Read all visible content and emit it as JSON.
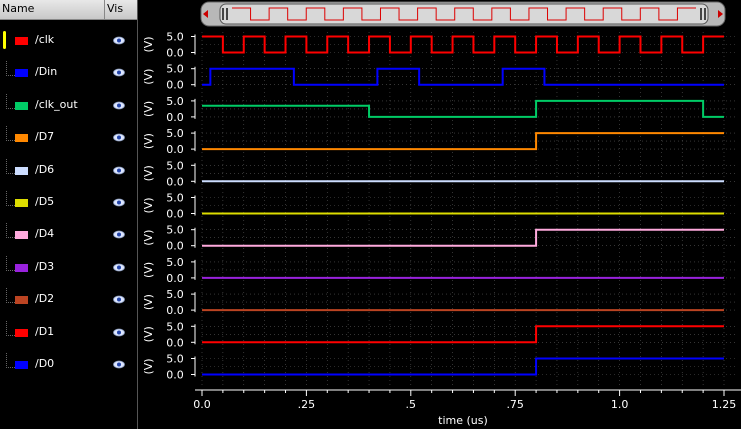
{
  "header": {
    "name": "Name",
    "vis": "Vis"
  },
  "signals": [
    {
      "name": "/clk",
      "color": "#ff0000"
    },
    {
      "name": "/Din",
      "color": "#0000ff"
    },
    {
      "name": "/clk_out",
      "color": "#00cc66"
    },
    {
      "name": "/D7",
      "color": "#ff8800"
    },
    {
      "name": "/D6",
      "color": "#ccddff"
    },
    {
      "name": "/D5",
      "color": "#dddd00"
    },
    {
      "name": "/D4",
      "color": "#ffaadd"
    },
    {
      "name": "/D3",
      "color": "#9922dd"
    },
    {
      "name": "/D2",
      "color": "#bb4422"
    },
    {
      "name": "/D1",
      "color": "#ff0000"
    },
    {
      "name": "/D0",
      "color": "#0000ff"
    }
  ],
  "chart_data": {
    "type": "line",
    "xlabel": "time (us)",
    "x_ticks": [
      "0.0",
      ".25",
      ".5",
      ".75",
      "1.0",
      "1.25"
    ],
    "xlim": [
      0,
      1.25
    ],
    "ylim": [
      0,
      5
    ],
    "y_ticks": [
      "5.0",
      "0.0"
    ],
    "y_ticks_small": [
      "5.0",
      "2.5",
      "0.0"
    ],
    "y_axis_label": "(V)",
    "grid": true,
    "series": [
      {
        "name": "/clk",
        "transitions": [
          [
            0,
            5
          ],
          [
            0.05,
            0
          ],
          [
            0.1,
            5
          ],
          [
            0.15,
            0
          ],
          [
            0.2,
            5
          ],
          [
            0.25,
            0
          ],
          [
            0.3,
            5
          ],
          [
            0.35,
            0
          ],
          [
            0.4,
            5
          ],
          [
            0.45,
            0
          ],
          [
            0.5,
            5
          ],
          [
            0.55,
            0
          ],
          [
            0.6,
            5
          ],
          [
            0.65,
            0
          ],
          [
            0.7,
            5
          ],
          [
            0.75,
            0
          ],
          [
            0.8,
            5
          ],
          [
            0.85,
            0
          ],
          [
            0.9,
            5
          ],
          [
            0.95,
            0
          ],
          [
            1.0,
            5
          ],
          [
            1.05,
            0
          ],
          [
            1.1,
            5
          ],
          [
            1.15,
            0
          ],
          [
            1.2,
            5
          ]
        ]
      },
      {
        "name": "/Din",
        "transitions": [
          [
            0,
            0
          ],
          [
            0.02,
            5
          ],
          [
            0.22,
            0
          ],
          [
            0.42,
            5
          ],
          [
            0.52,
            0
          ],
          [
            0.72,
            5
          ],
          [
            0.82,
            0
          ]
        ]
      },
      {
        "name": "/clk_out",
        "transitions": [
          [
            0,
            3.5
          ],
          [
            0.4,
            0
          ],
          [
            0.8,
            5
          ],
          [
            1.2,
            0
          ]
        ]
      },
      {
        "name": "/D7",
        "transitions": [
          [
            0,
            0
          ],
          [
            0.8,
            5
          ]
        ]
      },
      {
        "name": "/D6",
        "transitions": [
          [
            0,
            0
          ]
        ]
      },
      {
        "name": "/D5",
        "transitions": [
          [
            0,
            0
          ]
        ]
      },
      {
        "name": "/D4",
        "transitions": [
          [
            0,
            0
          ],
          [
            0.8,
            5
          ]
        ]
      },
      {
        "name": "/D3",
        "transitions": [
          [
            0,
            0
          ]
        ]
      },
      {
        "name": "/D2",
        "transitions": [
          [
            0,
            0
          ]
        ]
      },
      {
        "name": "/D1",
        "transitions": [
          [
            0,
            0
          ],
          [
            0.8,
            5
          ]
        ]
      },
      {
        "name": "/D0",
        "transitions": [
          [
            0,
            0
          ],
          [
            0.8,
            5
          ]
        ]
      }
    ]
  }
}
